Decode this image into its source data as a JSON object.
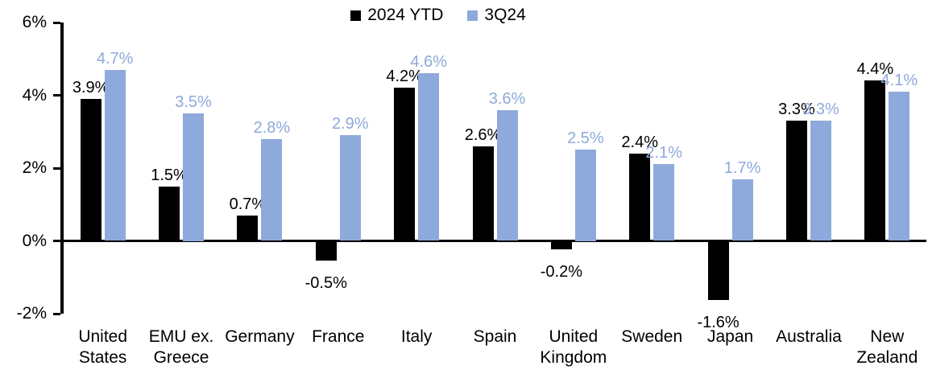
{
  "chart_data": {
    "type": "bar",
    "title": "",
    "xlabel": "",
    "ylabel": "",
    "categories": [
      "United States",
      "EMU ex. Greece",
      "Germany",
      "France",
      "Italy",
      "Spain",
      "United Kingdom",
      "Sweden",
      "Japan",
      "Australia",
      "New Zealand"
    ],
    "series": [
      {
        "name": "2024 YTD",
        "color": "#000000",
        "values": [
          3.9,
          1.5,
          0.7,
          -0.5,
          4.2,
          2.6,
          -0.2,
          2.4,
          -1.6,
          3.3,
          4.4
        ]
      },
      {
        "name": "3Q24",
        "color": "#8EA9DB",
        "values": [
          4.7,
          3.5,
          2.8,
          2.9,
          4.6,
          3.6,
          2.5,
          2.1,
          1.7,
          3.3,
          4.1
        ]
      }
    ],
    "data_labels": {
      "2024 YTD": [
        "3.9%",
        "1.5%",
        "0.7%",
        "-0.5%",
        "4.2%",
        "2.6%",
        "-0.2%",
        "2.4%",
        "-1.6%",
        "3.3%",
        "4.4%"
      ],
      "3Q24": [
        "4.7%",
        "3.5%",
        "2.8%",
        "2.9%",
        "4.6%",
        "3.6%",
        "2.5%",
        "2.1%",
        "1.7%",
        "3.3%",
        "4.1%"
      ]
    },
    "ylim": [
      -2,
      6
    ],
    "ytick_labels": [
      "6%",
      "4%",
      "2%",
      "0%",
      "-2%"
    ],
    "ytick_values": [
      6,
      4,
      2,
      0,
      -2
    ],
    "grid": false,
    "legend_position": "top-center"
  },
  "colors": {
    "background": "#FFFFFF",
    "axis": "#000000",
    "series_2024_ytd": "#000000",
    "series_3q24": "#8EA9DB"
  }
}
